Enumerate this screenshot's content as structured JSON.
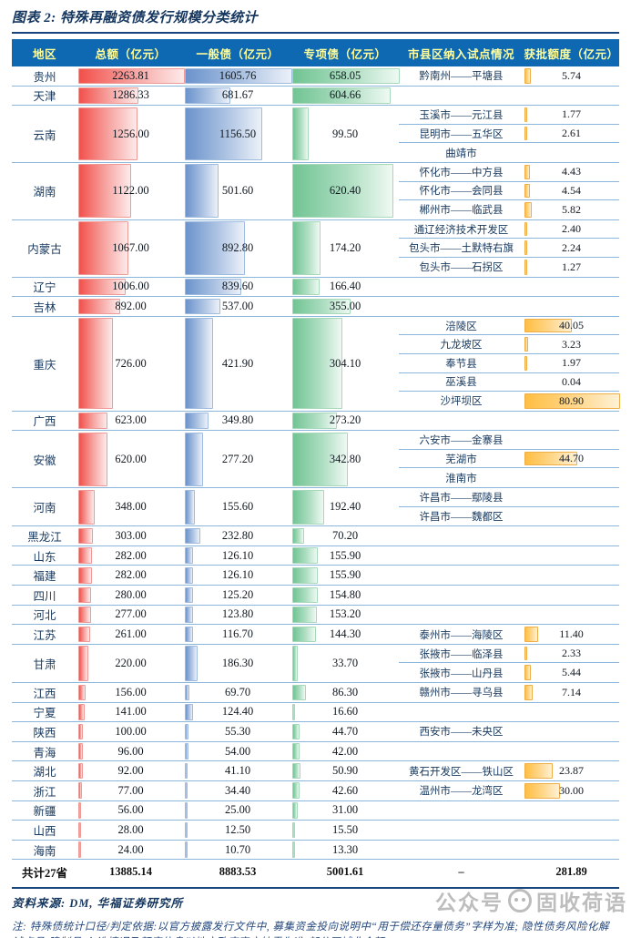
{
  "title": "图表 2: 特殊再融资债发行规模分类统计",
  "colors": {
    "header_bg": "#0E68B2",
    "header_text": "#FFFF9E",
    "title_navy": "#15365E",
    "row_divider": "#8AB6DC",
    "bar_total_red": "#F2504B",
    "bar_general_blue": "#6B93CC",
    "bar_special_green": "#71C493",
    "bar_quota_orange": "#FFBE42",
    "note_blue": "#24477C"
  },
  "chart_data": {
    "type": "table",
    "title": "图表 2: 特殊再融资债发行规模分类统计",
    "columns": [
      "地区",
      "总额（亿元）",
      "一般债（亿元）",
      "专项债（亿元）",
      "市县区纳入试点情况",
      "获批额度（亿元）"
    ],
    "bar_note": "红/蓝/绿/橙数据条宽度与各列最大值成比例（最大值：总额2263.81、一般债1605.76、专项债658.05、获批额度80.90）",
    "rows": [
      {
        "region": "贵州",
        "total": "2263.81",
        "general": "1605.76",
        "special": "658.05",
        "pilots": [
          {
            "name": "黔南州——平塘县",
            "quota": "5.74"
          }
        ]
      },
      {
        "region": "天津",
        "total": "1286.33",
        "general": "681.67",
        "special": "604.66",
        "pilots": [
          {
            "name": "",
            "quota": ""
          }
        ]
      },
      {
        "region": "云南",
        "total": "1256.00",
        "general": "1156.50",
        "special": "99.50",
        "pilots": [
          {
            "name": "玉溪市——元江县",
            "quota": "1.77"
          },
          {
            "name": "昆明市——五华区",
            "quota": "2.61"
          },
          {
            "name": "曲靖市",
            "quota": ""
          }
        ]
      },
      {
        "region": "湖南",
        "total": "1122.00",
        "general": "501.60",
        "special": "620.40",
        "pilots": [
          {
            "name": "怀化市——中方县",
            "quota": "4.43"
          },
          {
            "name": "怀化市——会同县",
            "quota": "4.54"
          },
          {
            "name": "郴州市——临武县",
            "quota": "5.82"
          }
        ]
      },
      {
        "region": "内蒙古",
        "total": "1067.00",
        "general": "892.80",
        "special": "174.20",
        "pilots": [
          {
            "name": "通辽经济技术开发区",
            "quota": "2.40"
          },
          {
            "name": "包头市——土默特右旗",
            "quota": "2.24"
          },
          {
            "name": "包头市——石拐区",
            "quota": "1.27"
          }
        ]
      },
      {
        "region": "辽宁",
        "total": "1006.00",
        "general": "839.60",
        "special": "166.40",
        "pilots": [
          {
            "name": "",
            "quota": ""
          }
        ]
      },
      {
        "region": "吉林",
        "total": "892.00",
        "general": "537.00",
        "special": "355.00",
        "pilots": [
          {
            "name": "",
            "quota": ""
          }
        ]
      },
      {
        "region": "重庆",
        "total": "726.00",
        "general": "421.90",
        "special": "304.10",
        "pilots": [
          {
            "name": "涪陵区",
            "quota": "40.05"
          },
          {
            "name": "九龙坡区",
            "quota": "3.23"
          },
          {
            "name": "奉节县",
            "quota": "1.97"
          },
          {
            "name": "巫溪县",
            "quota": "0.04"
          },
          {
            "name": "沙坪坝区",
            "quota": "80.90"
          }
        ]
      },
      {
        "region": "广西",
        "total": "623.00",
        "general": "349.80",
        "special": "273.20",
        "pilots": [
          {
            "name": "",
            "quota": ""
          }
        ]
      },
      {
        "region": "安徽",
        "total": "620.00",
        "general": "277.20",
        "special": "342.80",
        "pilots": [
          {
            "name": "六安市——金寨县",
            "quota": ""
          },
          {
            "name": "芜湖市",
            "quota": "44.70"
          },
          {
            "name": "淮南市",
            "quota": ""
          }
        ]
      },
      {
        "region": "河南",
        "total": "348.00",
        "general": "155.60",
        "special": "192.40",
        "pilots": [
          {
            "name": "许昌市——鄢陵县",
            "quota": ""
          },
          {
            "name": "许昌市——魏都区",
            "quota": ""
          }
        ]
      },
      {
        "region": "黑龙江",
        "total": "303.00",
        "general": "232.80",
        "special": "70.20",
        "pilots": [
          {
            "name": "",
            "quota": ""
          }
        ]
      },
      {
        "region": "山东",
        "total": "282.00",
        "general": "126.10",
        "special": "155.90",
        "pilots": [
          {
            "name": "",
            "quota": ""
          }
        ]
      },
      {
        "region": "福建",
        "total": "282.00",
        "general": "126.10",
        "special": "155.90",
        "pilots": [
          {
            "name": "",
            "quota": ""
          }
        ]
      },
      {
        "region": "四川",
        "total": "280.00",
        "general": "125.20",
        "special": "154.80",
        "pilots": [
          {
            "name": "",
            "quota": ""
          }
        ]
      },
      {
        "region": "河北",
        "total": "277.00",
        "general": "123.80",
        "special": "153.20",
        "pilots": [
          {
            "name": "",
            "quota": ""
          }
        ]
      },
      {
        "region": "江苏",
        "total": "261.00",
        "general": "116.70",
        "special": "144.30",
        "pilots": [
          {
            "name": "泰州市——海陵区",
            "quota": "11.40"
          }
        ]
      },
      {
        "region": "甘肃",
        "total": "220.00",
        "general": "186.30",
        "special": "33.70",
        "pilots": [
          {
            "name": "张掖市——临泽县",
            "quota": "2.33"
          },
          {
            "name": "张掖市——山丹县",
            "quota": "5.44"
          }
        ]
      },
      {
        "region": "江西",
        "total": "156.00",
        "general": "69.70",
        "special": "86.30",
        "pilots": [
          {
            "name": "赣州市——寻乌县",
            "quota": "7.14"
          }
        ]
      },
      {
        "region": "宁夏",
        "total": "141.00",
        "general": "124.40",
        "special": "16.60",
        "pilots": [
          {
            "name": "",
            "quota": ""
          }
        ]
      },
      {
        "region": "陕西",
        "total": "100.00",
        "general": "55.30",
        "special": "44.70",
        "pilots": [
          {
            "name": "西安市——未央区",
            "quota": ""
          }
        ]
      },
      {
        "region": "青海",
        "total": "96.00",
        "general": "54.00",
        "special": "42.00",
        "pilots": [
          {
            "name": "",
            "quota": ""
          }
        ]
      },
      {
        "region": "湖北",
        "total": "92.00",
        "general": "41.10",
        "special": "50.90",
        "pilots": [
          {
            "name": "黄石开发区——铁山区",
            "quota": "23.87"
          }
        ]
      },
      {
        "region": "浙江",
        "total": "77.00",
        "general": "34.40",
        "special": "42.60",
        "pilots": [
          {
            "name": "温州市——龙湾区",
            "quota": "30.00"
          }
        ]
      },
      {
        "region": "新疆",
        "total": "56.00",
        "general": "25.00",
        "special": "31.00",
        "pilots": [
          {
            "name": "",
            "quota": ""
          }
        ]
      },
      {
        "region": "山西",
        "total": "28.00",
        "general": "12.50",
        "special": "15.50",
        "pilots": [
          {
            "name": "",
            "quota": ""
          }
        ]
      },
      {
        "region": "海南",
        "total": "24.00",
        "general": "10.70",
        "special": "13.30",
        "pilots": [
          {
            "name": "",
            "quota": ""
          }
        ]
      }
    ],
    "total_row": {
      "region": "共计27省",
      "total": "13885.14",
      "general": "8883.53",
      "special": "5001.61",
      "pilot": "–",
      "quota": "281.89"
    }
  },
  "footer": {
    "source": "资料来源: DM, 华福证券研究所",
    "note": "注: 特殊债统计口径/判定依据:以官方披露发行文件中, 募集资金投向说明中“用于偿还存量债务”字样为准; 隐性债务风险化解试点县(建制县)入选情况及额度信息以地方政府官方披露为准(部分区域非全额)。"
  },
  "watermark": {
    "prefix": "公众号",
    "name": "固收荷语"
  }
}
